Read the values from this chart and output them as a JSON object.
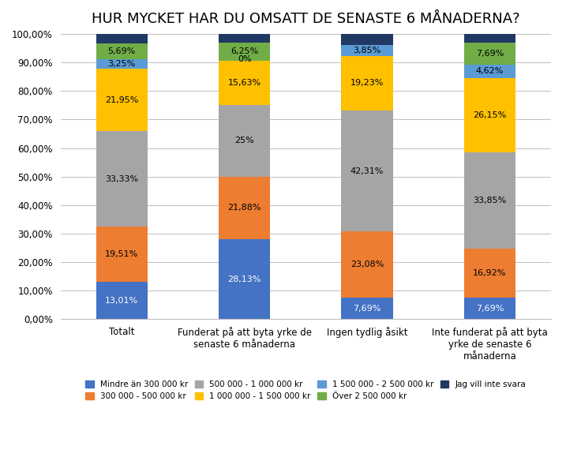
{
  "title": "HUR MYCKET HAR DU OMSATT DE SENASTE 6 MÅNADERNA?",
  "categories": [
    "Totalt",
    "Funderat på att byta yrke de\nsenaste 6 månaderna",
    "Ingen tydlig åsikt",
    "Inte funderat på att byta\nyrke de senaste 6\nmånaderna"
  ],
  "series": [
    {
      "label": "Mindre än 300 000 kr",
      "color": "#4472C4",
      "values": [
        13.01,
        28.13,
        7.69,
        7.69
      ],
      "labels": [
        "13,01%",
        "28,13%",
        "7,69%",
        "7,69%"
      ],
      "txt_color": "white"
    },
    {
      "label": "300 000 - 500 000 kr",
      "color": "#ED7D31",
      "values": [
        19.51,
        21.88,
        23.08,
        16.92
      ],
      "labels": [
        "19,51%",
        "21,88%",
        "23,08%",
        "16,92%"
      ],
      "txt_color": "black"
    },
    {
      "label": "500 000 - 1 000 000 kr",
      "color": "#A5A5A5",
      "values": [
        33.33,
        25.0,
        42.31,
        33.85
      ],
      "labels": [
        "33,33%",
        "25%",
        "42,31%",
        "33,85%"
      ],
      "txt_color": "black"
    },
    {
      "label": "1 000 000 - 1 500 000 kr",
      "color": "#FFC000",
      "values": [
        21.95,
        15.63,
        19.23,
        26.15
      ],
      "labels": [
        "21,95%",
        "15,63%",
        "19,23%",
        "26,15%"
      ],
      "txt_color": "black"
    },
    {
      "label": "1 500 000 - 2 500 000 kr",
      "color": "#5B9BD5",
      "values": [
        3.25,
        0.0,
        3.85,
        4.62
      ],
      "labels": [
        "3,25%",
        "0%",
        "3,85%",
        "4,62%"
      ],
      "txt_color": "black"
    },
    {
      "label": "Över 2 500 000 kr",
      "color": "#70AD47",
      "values": [
        5.69,
        6.25,
        0.0,
        7.69
      ],
      "labels": [
        "5,69%",
        "6,25%",
        "",
        "7,69%"
      ],
      "txt_color": "black"
    },
    {
      "label": "Jag vill inte svara",
      "color": "#203864",
      "values": [
        3.26,
        3.11,
        3.84,
        3.08
      ],
      "labels": [
        "",
        "",
        "",
        ""
      ],
      "txt_color": "white"
    }
  ],
  "ylim": [
    0,
    100
  ],
  "background_color": "#FFFFFF",
  "grid_color": "#BFBFBF",
  "label_fontsize": 8.0,
  "title_fontsize": 13,
  "bar_width": 0.42
}
